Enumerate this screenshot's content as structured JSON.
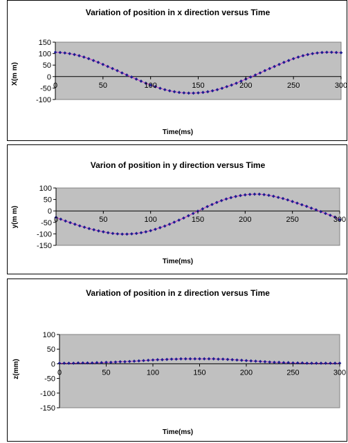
{
  "chart_data": [
    {
      "type": "scatter",
      "title": "Variation of position in x direction versus Time",
      "xlabel": "Time(ms)",
      "ylabel": "X(m m)",
      "xlim": [
        0,
        300
      ],
      "ylim": [
        -100,
        150
      ],
      "xticks": [
        "0",
        "50",
        "100",
        "150",
        "200",
        "250",
        "300"
      ],
      "yticks": [
        "150",
        "100",
        "50",
        "0",
        "-50",
        "-100"
      ],
      "grid": false,
      "plot_area_color": "#c0c0c0",
      "marker_color": "#1f1f8f",
      "line_color": "#cc33cc",
      "series": [
        {
          "x": [
            0,
            5,
            10,
            15,
            20,
            25,
            30,
            35,
            40,
            45,
            50,
            55,
            60,
            65,
            70,
            75,
            80,
            85,
            90,
            95,
            100,
            105,
            110,
            115,
            120,
            125,
            130,
            135,
            140,
            145,
            150,
            155,
            160,
            165,
            170,
            175,
            180,
            185,
            190,
            195,
            200,
            205,
            210,
            215,
            220,
            225,
            230,
            235,
            240,
            245,
            250,
            255,
            260,
            265,
            270,
            275,
            280,
            285,
            290,
            295,
            300
          ],
          "y": [
            106,
            105,
            103,
            100,
            96,
            91,
            85,
            78,
            70,
            62,
            53,
            44,
            35,
            26,
            16,
            7,
            -2,
            -11,
            -20,
            -29,
            -37,
            -44,
            -51,
            -57,
            -62,
            -66,
            -69,
            -71,
            -72,
            -72,
            -71,
            -69,
            -66,
            -62,
            -57,
            -51,
            -44,
            -37,
            -29,
            -20,
            -11,
            -2,
            7,
            16,
            26,
            35,
            44,
            53,
            62,
            70,
            78,
            85,
            91,
            96,
            100,
            103,
            105,
            106,
            106,
            105,
            104
          ]
        }
      ]
    },
    {
      "type": "scatter",
      "title": "Varion of position in y direction versus Time",
      "xlabel": "Time(ms)",
      "ylabel": "y(m m)",
      "xlim": [
        0,
        300
      ],
      "ylim": [
        -150,
        100
      ],
      "xticks": [
        "0",
        "50",
        "100",
        "150",
        "200",
        "250",
        "300"
      ],
      "yticks": [
        "100",
        "50",
        "0",
        "-50",
        "-100",
        "-150"
      ],
      "grid": false,
      "plot_area_color": "#c0c0c0",
      "marker_color": "#1f1f8f",
      "line_color": "#cc33cc",
      "series": [
        {
          "x": [
            0,
            5,
            10,
            15,
            20,
            25,
            30,
            35,
            40,
            45,
            50,
            55,
            60,
            65,
            70,
            75,
            80,
            85,
            90,
            95,
            100,
            105,
            110,
            115,
            120,
            125,
            130,
            135,
            140,
            145,
            150,
            155,
            160,
            165,
            170,
            175,
            180,
            185,
            190,
            195,
            200,
            205,
            210,
            215,
            220,
            225,
            230,
            235,
            240,
            245,
            250,
            255,
            260,
            265,
            270,
            275,
            280,
            285,
            290,
            295,
            300
          ],
          "y": [
            -28,
            -36,
            -44,
            -51,
            -58,
            -65,
            -71,
            -77,
            -82,
            -87,
            -91,
            -95,
            -98,
            -100,
            -101,
            -101,
            -100,
            -98,
            -95,
            -91,
            -86,
            -80,
            -73,
            -66,
            -58,
            -49,
            -40,
            -31,
            -21,
            -11,
            -1,
            9,
            19,
            28,
            37,
            45,
            52,
            58,
            63,
            67,
            70,
            72,
            73,
            73,
            71,
            68,
            64,
            59,
            54,
            48,
            41,
            34,
            27,
            20,
            12,
            5,
            -3,
            -11,
            -19,
            -27,
            -38
          ]
        }
      ]
    },
    {
      "type": "scatter",
      "title": "Variation of position in z direction versus Time",
      "xlabel": "Time(ms)",
      "ylabel": "z(mm)",
      "xlim": [
        0,
        300
      ],
      "ylim": [
        -150,
        100
      ],
      "xticks": [
        "0",
        "50",
        "100",
        "150",
        "200",
        "250",
        "300"
      ],
      "yticks": [
        "100",
        "50",
        "0",
        "-50",
        "-100",
        "-150"
      ],
      "grid": false,
      "plot_area_color": "#c0c0c0",
      "marker_color": "#1f1f8f",
      "line_color": "#cc33cc",
      "series": [
        {
          "x": [
            0,
            5,
            10,
            15,
            20,
            25,
            30,
            35,
            40,
            45,
            50,
            55,
            60,
            65,
            70,
            75,
            80,
            85,
            90,
            95,
            100,
            105,
            110,
            115,
            120,
            125,
            130,
            135,
            140,
            145,
            150,
            155,
            160,
            165,
            170,
            175,
            180,
            185,
            190,
            195,
            200,
            205,
            210,
            215,
            220,
            225,
            230,
            235,
            240,
            245,
            250,
            255,
            260,
            265,
            270,
            275,
            280,
            285,
            290,
            295,
            300
          ],
          "y": [
            2,
            2,
            2,
            2,
            3,
            3,
            3,
            3,
            4,
            4,
            5,
            5,
            6,
            7,
            7,
            8,
            9,
            10,
            11,
            12,
            13,
            14,
            14,
            15,
            16,
            16,
            17,
            17,
            17,
            17,
            17,
            17,
            17,
            17,
            16,
            16,
            15,
            14,
            13,
            12,
            11,
            10,
            9,
            8,
            7,
            6,
            5,
            5,
            4,
            4,
            3,
            3,
            3,
            2,
            2,
            2,
            2,
            2,
            2,
            2,
            2
          ]
        }
      ]
    }
  ]
}
